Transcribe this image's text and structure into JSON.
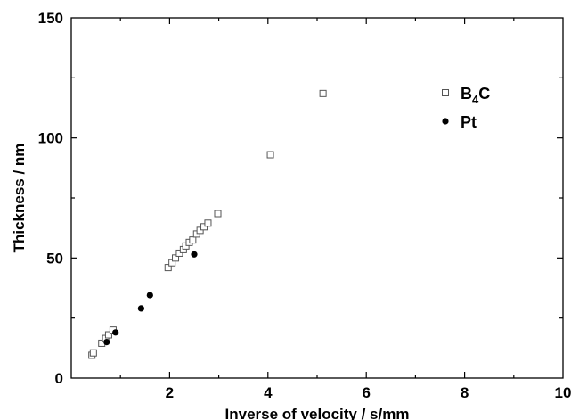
{
  "chart_data": {
    "type": "scatter",
    "title": "",
    "xlabel": "Inverse of velocity / s/mm",
    "ylabel": "Thickness / nm",
    "xlim": [
      0,
      10
    ],
    "ylim": [
      0,
      150
    ],
    "x_ticks": [
      "2",
      "4",
      "6",
      "8",
      "10"
    ],
    "y_ticks": [
      "0",
      "50",
      "100",
      "150"
    ],
    "grid": false,
    "legend_position": "top-right",
    "series": [
      {
        "name": "B4C",
        "name_main": "B",
        "name_sub": "4",
        "name_tail": "C",
        "marker": "open-square",
        "color": "#555555",
        "points": [
          [
            0.42,
            9.5
          ],
          [
            0.45,
            10.5
          ],
          [
            0.62,
            14.5
          ],
          [
            0.7,
            16.5
          ],
          [
            0.76,
            18.0
          ],
          [
            0.85,
            20.0
          ],
          [
            1.97,
            46.0
          ],
          [
            2.05,
            48.0
          ],
          [
            2.12,
            50.0
          ],
          [
            2.2,
            52.0
          ],
          [
            2.28,
            53.5
          ],
          [
            2.33,
            55.0
          ],
          [
            2.4,
            56.5
          ],
          [
            2.47,
            57.5
          ],
          [
            2.55,
            60.0
          ],
          [
            2.62,
            61.5
          ],
          [
            2.7,
            63.0
          ],
          [
            2.78,
            64.5
          ],
          [
            2.98,
            68.5
          ],
          [
            4.05,
            93.0
          ],
          [
            5.12,
            118.5
          ]
        ]
      },
      {
        "name": "Pt",
        "marker": "filled-circle",
        "color": "#000000",
        "points": [
          [
            0.72,
            15.0
          ],
          [
            0.9,
            19.0
          ],
          [
            1.42,
            29.0
          ],
          [
            1.6,
            34.5
          ],
          [
            2.5,
            51.5
          ]
        ]
      }
    ]
  }
}
